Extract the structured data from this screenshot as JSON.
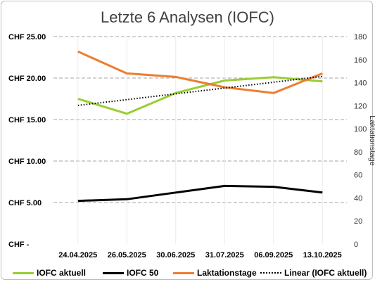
{
  "chart_data": {
    "type": "line",
    "title": "Letzte 6 Analysen (IOFC)",
    "categories": [
      "24.04.2025",
      "26.05.2025",
      "30.06.2025",
      "31.07.2025",
      "06.09.2025",
      "13.10.2025"
    ],
    "y_left": {
      "ticks": [
        "CHF -",
        "CHF 5.00",
        "CHF 10.00",
        "CHF 15.00",
        "CHF 20.00",
        "CHF 25.00"
      ],
      "ylim": [
        0,
        25
      ]
    },
    "y_right": {
      "label": "Laktationstage",
      "ticks": [
        "0",
        "20",
        "40",
        "60",
        "80",
        "100",
        "120",
        "140",
        "160",
        "180"
      ],
      "ylim": [
        0,
        180
      ]
    },
    "grid": "horizontal dashed",
    "legend_position": "bottom",
    "series": [
      {
        "name": "IOFC aktuell",
        "axis": "left",
        "color": "#9acd32",
        "values": [
          17.5,
          15.7,
          18.2,
          19.7,
          20.1,
          19.6
        ]
      },
      {
        "name": "IOFC 50",
        "axis": "left",
        "color": "#000000",
        "values": [
          5.2,
          5.4,
          6.2,
          7.0,
          6.9,
          6.2
        ]
      },
      {
        "name": "Laktationstage",
        "axis": "right",
        "color": "#ed7d31",
        "values": [
          167,
          148,
          145,
          136,
          131,
          148
        ]
      },
      {
        "name": "Linear (IOFC aktuell)",
        "axis": "left",
        "color": "#000000",
        "style": "dotted",
        "values": [
          16.7,
          17.4,
          18.1,
          18.8,
          19.5,
          20.2
        ]
      }
    ]
  }
}
